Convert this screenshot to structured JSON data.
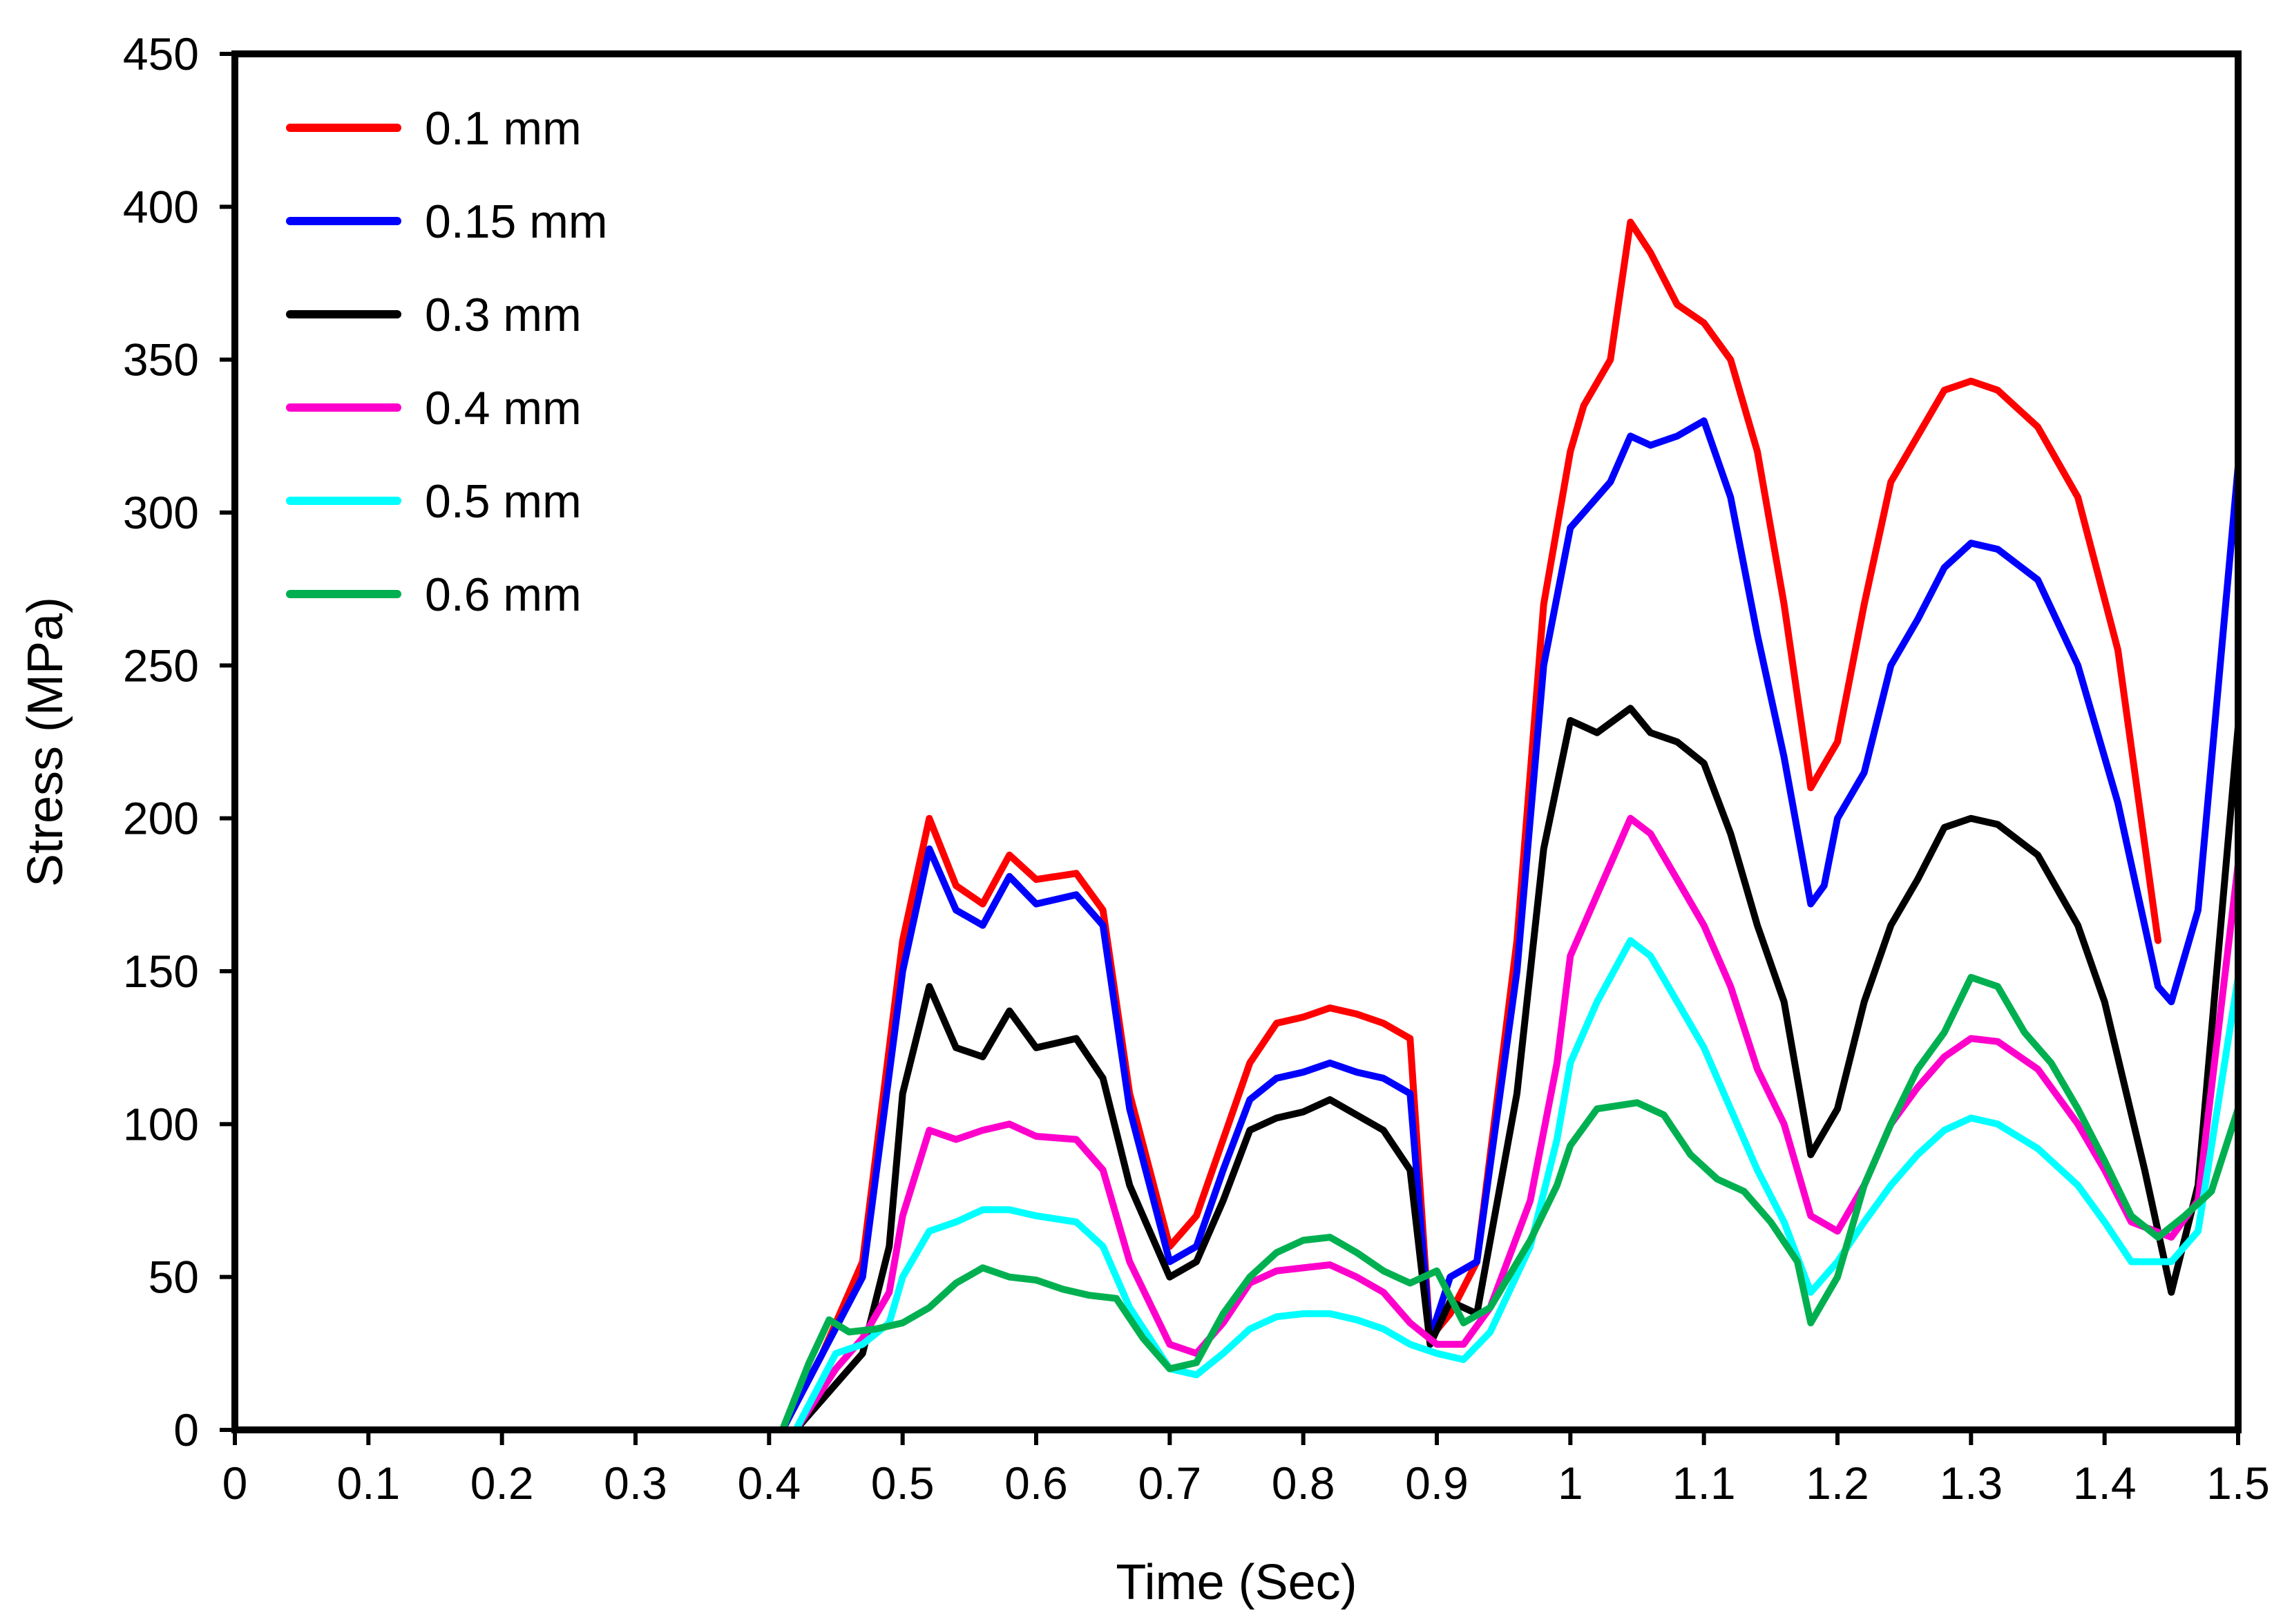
{
  "chart_data": {
    "type": "line",
    "title": "",
    "xlabel": "Time (Sec)",
    "ylabel": "Stress (MPa)",
    "xlim": [
      0,
      1.5
    ],
    "ylim": [
      0,
      450
    ],
    "x_ticks": [
      "0",
      "0.1",
      "0.2",
      "0.3",
      "0.4",
      "0.5",
      "0.6",
      "0.7",
      "0.8",
      "0.9",
      "1",
      "1.1",
      "1.2",
      "1.3",
      "1.4",
      "1.5"
    ],
    "y_ticks": [
      "0",
      "50",
      "100",
      "150",
      "200",
      "250",
      "300",
      "350",
      "400",
      "450"
    ],
    "grid": false,
    "legend_position": "top-left",
    "series": [
      {
        "name": "0.1 mm",
        "color": "#ff0000",
        "x": [
          0.41,
          0.44,
          0.47,
          0.5,
          0.52,
          0.54,
          0.56,
          0.58,
          0.6,
          0.63,
          0.65,
          0.67,
          0.7,
          0.72,
          0.74,
          0.76,
          0.78,
          0.8,
          0.82,
          0.84,
          0.86,
          0.88,
          0.895,
          0.91,
          0.93,
          0.96,
          0.98,
          1.0,
          1.01,
          1.03,
          1.045,
          1.06,
          1.08,
          1.1,
          1.12,
          1.14,
          1.16,
          1.18,
          1.2,
          1.22,
          1.24,
          1.26,
          1.28,
          1.3,
          1.32,
          1.35,
          1.38,
          1.41,
          1.44
        ],
        "values": [
          0,
          25,
          55,
          160,
          200,
          178,
          172,
          188,
          180,
          182,
          170,
          110,
          60,
          70,
          95,
          120,
          133,
          135,
          138,
          136,
          133,
          128,
          30,
          38,
          55,
          160,
          270,
          320,
          335,
          350,
          395,
          385,
          368,
          362,
          350,
          320,
          270,
          210,
          225,
          270,
          310,
          325,
          340,
          343,
          340,
          328,
          305,
          255,
          160
        ]
      },
      {
        "name": "0.15 mm",
        "color": "#0000ff",
        "x": [
          0.41,
          0.44,
          0.47,
          0.5,
          0.52,
          0.54,
          0.56,
          0.58,
          0.6,
          0.63,
          0.65,
          0.67,
          0.7,
          0.72,
          0.74,
          0.76,
          0.78,
          0.8,
          0.82,
          0.84,
          0.86,
          0.88,
          0.895,
          0.91,
          0.93,
          0.96,
          0.98,
          1.0,
          1.01,
          1.03,
          1.045,
          1.06,
          1.08,
          1.1,
          1.12,
          1.14,
          1.16,
          1.18,
          1.19,
          1.2,
          1.22,
          1.24,
          1.26,
          1.28,
          1.3,
          1.32,
          1.35,
          1.38,
          1.41,
          1.44,
          1.45,
          1.47,
          1.5
        ],
        "values": [
          0,
          25,
          50,
          150,
          190,
          170,
          165,
          181,
          172,
          175,
          165,
          105,
          55,
          60,
          85,
          108,
          115,
          117,
          120,
          117,
          115,
          110,
          30,
          50,
          55,
          150,
          250,
          295,
          300,
          310,
          325,
          322,
          325,
          330,
          305,
          260,
          220,
          172,
          178,
          200,
          215,
          250,
          265,
          282,
          290,
          288,
          278,
          250,
          205,
          145,
          140,
          170,
          315
        ]
      },
      {
        "name": "0.3 mm",
        "color": "#000000",
        "x": [
          0.42,
          0.45,
          0.47,
          0.49,
          0.5,
          0.52,
          0.54,
          0.56,
          0.58,
          0.6,
          0.63,
          0.65,
          0.67,
          0.7,
          0.72,
          0.74,
          0.76,
          0.78,
          0.8,
          0.82,
          0.84,
          0.86,
          0.88,
          0.895,
          0.91,
          0.93,
          0.96,
          0.98,
          1.0,
          1.02,
          1.045,
          1.06,
          1.08,
          1.1,
          1.12,
          1.14,
          1.16,
          1.18,
          1.2,
          1.22,
          1.24,
          1.26,
          1.28,
          1.3,
          1.32,
          1.35,
          1.38,
          1.4,
          1.43,
          1.45,
          1.47,
          1.5
        ],
        "values": [
          0,
          15,
          25,
          60,
          110,
          145,
          125,
          122,
          137,
          125,
          128,
          115,
          80,
          50,
          55,
          75,
          98,
          102,
          104,
          108,
          103,
          98,
          85,
          28,
          42,
          38,
          110,
          190,
          232,
          228,
          236,
          228,
          225,
          218,
          195,
          165,
          140,
          90,
          105,
          140,
          165,
          180,
          197,
          200,
          198,
          188,
          165,
          140,
          85,
          45,
          80,
          230
        ]
      },
      {
        "name": "0.4 mm",
        "color": "#ff00cc",
        "x": [
          0.42,
          0.45,
          0.47,
          0.49,
          0.5,
          0.52,
          0.54,
          0.56,
          0.58,
          0.6,
          0.63,
          0.65,
          0.67,
          0.7,
          0.72,
          0.74,
          0.76,
          0.78,
          0.8,
          0.82,
          0.84,
          0.86,
          0.88,
          0.9,
          0.92,
          0.94,
          0.97,
          0.99,
          1.0,
          1.02,
          1.045,
          1.06,
          1.08,
          1.1,
          1.12,
          1.14,
          1.16,
          1.18,
          1.2,
          1.22,
          1.24,
          1.26,
          1.28,
          1.3,
          1.32,
          1.35,
          1.38,
          1.4,
          1.42,
          1.45,
          1.47,
          1.5
        ],
        "values": [
          0,
          20,
          30,
          45,
          70,
          98,
          95,
          98,
          100,
          96,
          95,
          85,
          55,
          28,
          25,
          35,
          48,
          52,
          53,
          54,
          50,
          45,
          35,
          28,
          28,
          40,
          75,
          120,
          155,
          175,
          200,
          195,
          180,
          165,
          145,
          118,
          100,
          70,
          65,
          80,
          100,
          112,
          122,
          128,
          127,
          118,
          100,
          85,
          68,
          63,
          75,
          185
        ]
      },
      {
        "name": "0.5 mm",
        "color": "#00ffff",
        "x": [
          0.42,
          0.45,
          0.47,
          0.49,
          0.5,
          0.52,
          0.54,
          0.56,
          0.58,
          0.6,
          0.63,
          0.65,
          0.67,
          0.7,
          0.72,
          0.74,
          0.76,
          0.78,
          0.8,
          0.82,
          0.84,
          0.86,
          0.88,
          0.9,
          0.92,
          0.94,
          0.97,
          0.99,
          1.0,
          1.02,
          1.045,
          1.06,
          1.08,
          1.1,
          1.12,
          1.14,
          1.16,
          1.18,
          1.2,
          1.22,
          1.24,
          1.26,
          1.28,
          1.3,
          1.32,
          1.35,
          1.38,
          1.4,
          1.42,
          1.45,
          1.47,
          1.5
        ],
        "values": [
          0,
          25,
          28,
          35,
          50,
          65,
          68,
          72,
          72,
          70,
          68,
          60,
          40,
          20,
          18,
          25,
          33,
          37,
          38,
          38,
          36,
          33,
          28,
          25,
          23,
          32,
          60,
          95,
          120,
          140,
          160,
          155,
          140,
          125,
          105,
          85,
          68,
          45,
          55,
          68,
          80,
          90,
          98,
          102,
          100,
          92,
          80,
          68,
          55,
          55,
          65,
          148
        ]
      },
      {
        "name": "0.6 mm",
        "color": "#00b050",
        "x": [
          0.41,
          0.43,
          0.445,
          0.46,
          0.48,
          0.5,
          0.52,
          0.54,
          0.56,
          0.58,
          0.6,
          0.62,
          0.64,
          0.66,
          0.68,
          0.7,
          0.72,
          0.74,
          0.76,
          0.78,
          0.8,
          0.82,
          0.84,
          0.86,
          0.88,
          0.9,
          0.92,
          0.94,
          0.97,
          0.99,
          1.0,
          1.02,
          1.05,
          1.07,
          1.09,
          1.11,
          1.13,
          1.15,
          1.17,
          1.18,
          1.2,
          1.22,
          1.24,
          1.26,
          1.28,
          1.3,
          1.32,
          1.34,
          1.36,
          1.38,
          1.4,
          1.42,
          1.44,
          1.46,
          1.48,
          1.5
        ],
        "values": [
          0,
          22,
          36,
          32,
          33,
          35,
          40,
          48,
          53,
          50,
          49,
          46,
          44,
          43,
          30,
          20,
          22,
          38,
          50,
          58,
          62,
          63,
          58,
          52,
          48,
          52,
          35,
          40,
          62,
          80,
          93,
          105,
          107,
          103,
          90,
          82,
          78,
          68,
          55,
          35,
          50,
          80,
          100,
          118,
          130,
          148,
          145,
          130,
          120,
          105,
          88,
          70,
          63,
          70,
          78,
          105
        ]
      }
    ]
  }
}
